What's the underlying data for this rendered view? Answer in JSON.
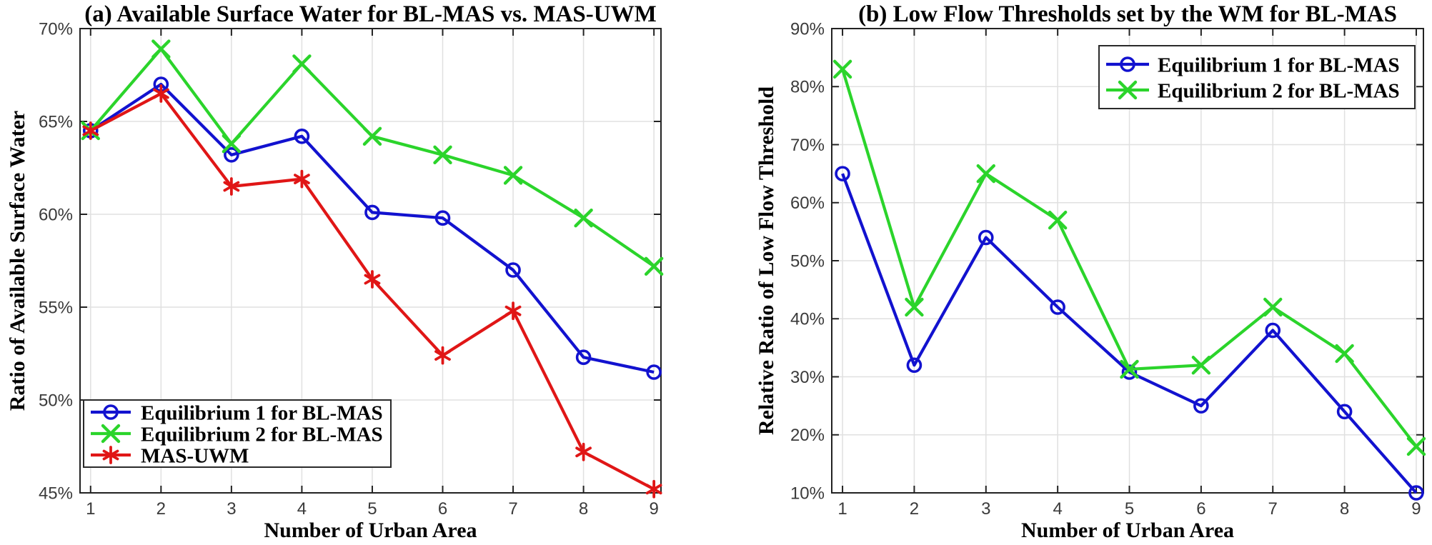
{
  "page": {
    "background": "#ffffff"
  },
  "chart_data": [
    {
      "type": "line",
      "panel": "a",
      "title": "(a) Available Surface Water for BL-MAS vs. MAS-UWM",
      "xlabel": "Number of Urban Area",
      "ylabel": "Ratio of Available Surface Water",
      "x": [
        1,
        2,
        3,
        4,
        5,
        6,
        7,
        8,
        9
      ],
      "xticks": [
        1,
        2,
        3,
        4,
        5,
        6,
        7,
        8,
        9
      ],
      "yticks": [
        45,
        50,
        55,
        60,
        65,
        70
      ],
      "ytick_suffix": "%",
      "xlim": [
        0.85,
        9.1
      ],
      "ylim": [
        45,
        70
      ],
      "grid": true,
      "legend_position": "bottom-left",
      "colors": {
        "axis": "#222222",
        "grid": "#e0e0e0",
        "tick_text": "#3a3a3a",
        "background": "#ffffff"
      },
      "series": [
        {
          "name": "Equilibrium 1 for BL-MAS",
          "color": "#1212cf",
          "marker": "circle",
          "values": [
            64.5,
            67.0,
            63.2,
            64.2,
            60.1,
            59.8,
            57.0,
            52.3,
            51.5
          ]
        },
        {
          "name": "Equilibrium 2 for BL-MAS",
          "color": "#2bd42b",
          "marker": "x",
          "values": [
            64.5,
            68.9,
            63.8,
            68.1,
            64.2,
            63.2,
            62.1,
            59.8,
            57.2
          ]
        },
        {
          "name": "MAS-UWM",
          "color": "#e01616",
          "marker": "asterisk",
          "values": [
            64.5,
            66.5,
            61.5,
            61.9,
            56.5,
            52.4,
            54.8,
            47.2,
            45.2
          ]
        }
      ]
    },
    {
      "type": "line",
      "panel": "b",
      "title": "(b) Low Flow Thresholds set by the WM for BL-MAS",
      "xlabel": "Number of Urban Area",
      "ylabel": "Relative Ratio of Low Flow Threshold",
      "x": [
        1,
        2,
        3,
        4,
        5,
        6,
        7,
        8,
        9
      ],
      "xticks": [
        1,
        2,
        3,
        4,
        5,
        6,
        7,
        8,
        9
      ],
      "yticks": [
        10,
        20,
        30,
        40,
        50,
        60,
        70,
        80,
        90
      ],
      "ytick_suffix": "%",
      "xlim": [
        0.85,
        9.1
      ],
      "ylim": [
        10,
        90
      ],
      "grid": true,
      "legend_position": "top-right",
      "colors": {
        "axis": "#222222",
        "grid": "#e0e0e0",
        "tick_text": "#3a3a3a",
        "background": "#ffffff"
      },
      "series": [
        {
          "name": "Equilibrium 1 for BL-MAS",
          "color": "#1212cf",
          "marker": "circle",
          "values": [
            65,
            32,
            54,
            42,
            30.8,
            25,
            38,
            24,
            10
          ]
        },
        {
          "name": "Equilibrium 2 for BL-MAS",
          "color": "#2bd42b",
          "marker": "x",
          "values": [
            83,
            42,
            65,
            57,
            31.3,
            32,
            42,
            34,
            18
          ]
        }
      ]
    }
  ]
}
